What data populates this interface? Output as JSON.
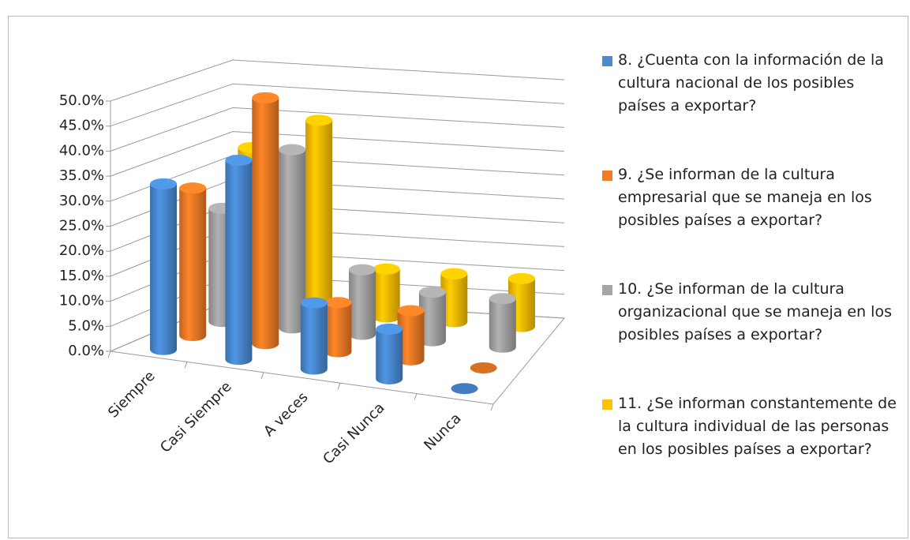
{
  "chart_data": {
    "type": "bar3d",
    "categories": [
      "Siempre",
      "Casi Siempre",
      "A veces",
      "Casi Nunca",
      "Nunca"
    ],
    "series": [
      {
        "name": "8. ¿Cuenta con la información de la cultura nacional de los posibles países a exportar?",
        "color": "#4a8bd4",
        "values": [
          33.3,
          40,
          13.3,
          10,
          0
        ]
      },
      {
        "name": "9. ¿Se informan  de la cultura empresarial que se maneja en los  posibles países a exportar?",
        "color": "#f07c25",
        "values": [
          30,
          50,
          10,
          10,
          0
        ]
      },
      {
        "name": "10. ¿Se  informan  de la cultura organizacional que se maneja en los posibles países a exportar?",
        "color": "#a5a5a5",
        "values": [
          23.3,
          36.7,
          13.3,
          10,
          10
        ]
      },
      {
        "name": "11. ¿Se informan constantemente de la cultura individual de las personas en los posibles  países a exportar?",
        "color": "#ffc000",
        "values": [
          33.3,
          40,
          10,
          10,
          10
        ]
      }
    ],
    "ylim": [
      0,
      50
    ],
    "yticks": [
      {
        "value": 0,
        "label": "0.0%"
      },
      {
        "value": 5,
        "label": "5.0%"
      },
      {
        "value": 10,
        "label": "10.0%"
      },
      {
        "value": 15,
        "label": "15.0%"
      },
      {
        "value": 20,
        "label": "20.0%"
      },
      {
        "value": 25,
        "label": "25.0%"
      },
      {
        "value": 30,
        "label": "30.0%"
      },
      {
        "value": 35,
        "label": "35.0%"
      },
      {
        "value": 40,
        "label": "40.0%"
      },
      {
        "value": 45,
        "label": "45.0%"
      },
      {
        "value": 50,
        "label": "50.0%"
      }
    ],
    "grid": true,
    "legend": "right"
  }
}
